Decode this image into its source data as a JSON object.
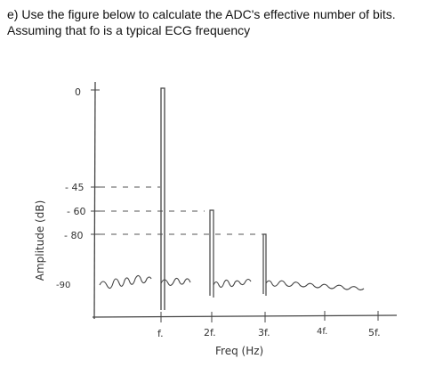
{
  "question": {
    "line1": "e) Use the figure below to calculate the ADC's effective number of bits.",
    "line2": "Assuming that fo is a typical ECG frequency"
  },
  "figure": {
    "ylabel": "Amplitude (dB)",
    "xlabel": "Freq (Hz)",
    "y_ticks": [
      "0",
      "- 45",
      "- 60",
      "- 80",
      "-90"
    ],
    "x_ticks": [
      "f.",
      "2f.",
      "3f.",
      "4f.",
      "5f."
    ]
  },
  "chart_data": {
    "type": "line",
    "title": "",
    "xlabel": "Freq (Hz)",
    "ylabel": "Amplitude (dB)",
    "x_categories": [
      "f.",
      "2f.",
      "3f.",
      "4f.",
      "5f."
    ],
    "y_ticks": [
      0,
      -45,
      -60,
      -80,
      -90
    ],
    "spectral_lines": [
      {
        "x": "f.",
        "amplitude_db": 0
      },
      {
        "x": "2f.",
        "amplitude_db": -60
      },
      {
        "x": "3f.",
        "amplitude_db": -80
      }
    ],
    "noise_floor_db": -90,
    "colors": {
      "ink": "#444444"
    }
  }
}
